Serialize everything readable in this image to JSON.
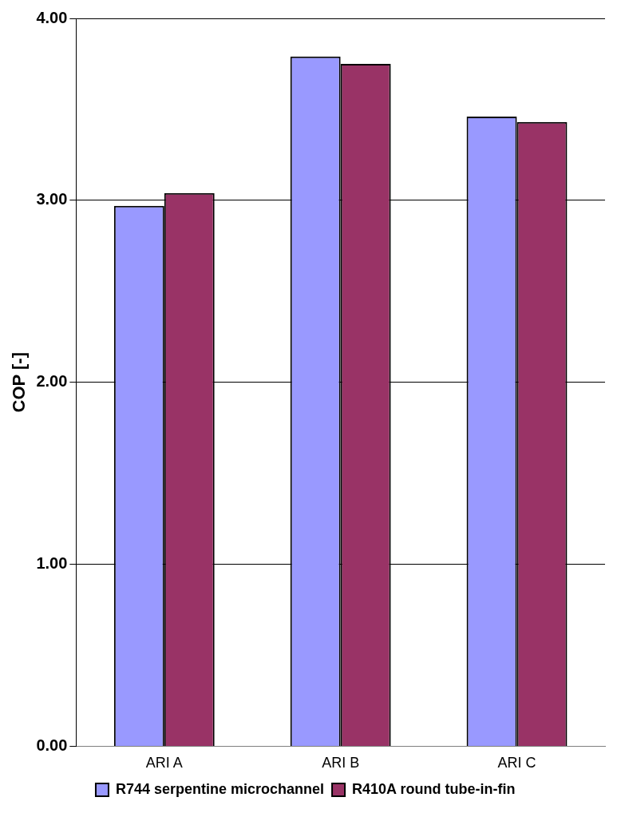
{
  "chart_data": {
    "type": "bar",
    "ylabel": "COP [-]",
    "categories": [
      "ARI A",
      "ARI B",
      "ARI C"
    ],
    "series": [
      {
        "name": "R744 serpentine microchannel",
        "color": "#9999ff",
        "values": [
          2.97,
          3.79,
          3.46
        ]
      },
      {
        "name": "R410A round tube-in-fin",
        "color": "#993366",
        "values": [
          3.04,
          3.75,
          3.43
        ]
      }
    ],
    "ylim": [
      0,
      4
    ],
    "yticks": [
      {
        "value": 0,
        "label": "0.00"
      },
      {
        "value": 1,
        "label": "1.00"
      },
      {
        "value": 2,
        "label": "2.00"
      },
      {
        "value": 3,
        "label": "3.00"
      },
      {
        "value": 4,
        "label": "4.00"
      }
    ],
    "grid": "y",
    "legend": "bottom"
  }
}
